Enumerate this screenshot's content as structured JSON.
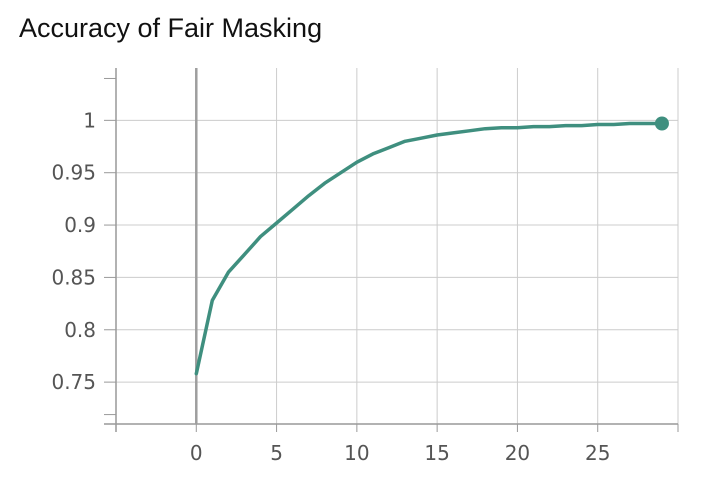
{
  "chart_data": {
    "type": "line",
    "title": "Accuracy of Fair Masking",
    "xlabel": "",
    "ylabel": "",
    "xlim": [
      -5,
      30
    ],
    "ylim": [
      0.71,
      1.05
    ],
    "x_ticks": [
      0,
      5,
      10,
      15,
      20,
      25
    ],
    "y_ticks": [
      0.75,
      0.8,
      0.85,
      0.9,
      0.95,
      1
    ],
    "grid": true,
    "legend": "none",
    "series": [
      {
        "color": "#3f8f7f",
        "x": [
          0,
          1,
          2,
          3,
          4,
          5,
          6,
          7,
          8,
          9,
          10,
          11,
          12,
          13,
          14,
          15,
          16,
          17,
          18,
          19,
          20,
          21,
          22,
          23,
          24,
          25,
          26,
          27,
          28,
          29
        ],
        "y": [
          0.758,
          0.828,
          0.855,
          0.872,
          0.889,
          0.902,
          0.915,
          0.928,
          0.94,
          0.95,
          0.96,
          0.968,
          0.974,
          0.98,
          0.983,
          0.986,
          0.988,
          0.99,
          0.992,
          0.993,
          0.993,
          0.994,
          0.994,
          0.995,
          0.995,
          0.996,
          0.996,
          0.997,
          0.997,
          0.997
        ]
      }
    ]
  }
}
